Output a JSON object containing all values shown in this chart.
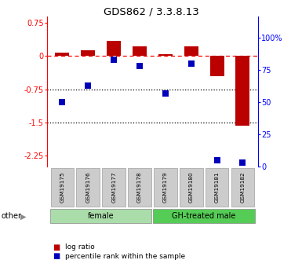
{
  "title": "GDS862 / 3.3.8.13",
  "samples": [
    "GSM19175",
    "GSM19176",
    "GSM19177",
    "GSM19178",
    "GSM19179",
    "GSM19180",
    "GSM19181",
    "GSM19182"
  ],
  "log_ratio": [
    0.08,
    0.13,
    0.35,
    0.22,
    0.05,
    0.22,
    -0.45,
    -1.58
  ],
  "percentile_rank": [
    50,
    63,
    83,
    78,
    57,
    80,
    5,
    3
  ],
  "groups": [
    {
      "label": "female",
      "start": 0,
      "end": 4,
      "color": "#aaddaa"
    },
    {
      "label": "GH-treated male",
      "start": 4,
      "end": 8,
      "color": "#55cc55"
    }
  ],
  "ylim_left": [
    -2.5,
    0.9
  ],
  "ylim_right": [
    0,
    116.67
  ],
  "yticks_left": [
    0.75,
    0.0,
    -0.75,
    -1.5,
    -2.25
  ],
  "yticks_right": [
    100,
    75,
    50,
    25,
    0
  ],
  "hlines_dotted": [
    -0.75,
    -1.5
  ],
  "dashed_hline": 0.0,
  "bar_color": "#BB0000",
  "dot_color": "#0000BB",
  "bar_width": 0.55,
  "dot_size": 28,
  "bg_color": "#ffffff",
  "label_box_color": "#cccccc",
  "legend_items": [
    "log ratio",
    "percentile rank within the sample"
  ],
  "other_label": "other"
}
